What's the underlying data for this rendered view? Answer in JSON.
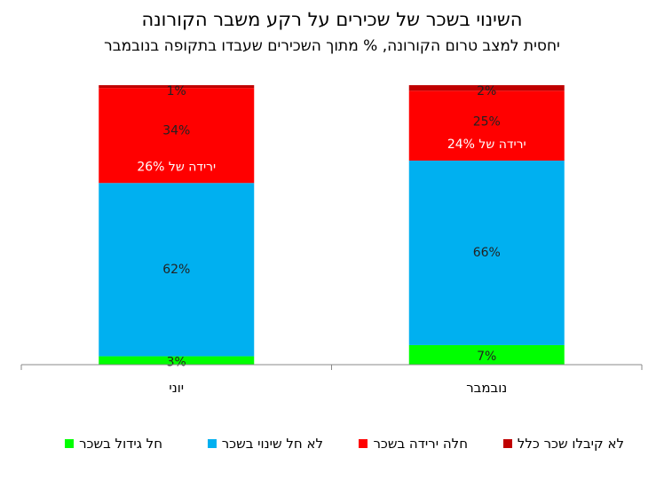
{
  "chart_data": {
    "type": "bar",
    "stacked": true,
    "normalized": true,
    "title": "השינוי בשכר של שכירים על רקע משבר הקורונה",
    "subtitle": "יחסית למצב טרום הקורונה, % מתוך השכירים שעבדו בתקופה בנובמבר",
    "categories": [
      "יוני",
      "נובמבר"
    ],
    "series": [
      {
        "name": "חל גידול בשכר",
        "color": "#00FF00",
        "values": [
          3,
          7
        ],
        "labels": [
          "3%",
          "7%"
        ]
      },
      {
        "name": "לא חל שינוי בשכר",
        "color": "#00B0F0",
        "values": [
          62,
          66
        ],
        "labels": [
          "62%",
          "66%"
        ]
      },
      {
        "name": "חלה ירידה בשכר",
        "color": "#FF0000",
        "values": [
          34,
          25
        ],
        "labels": [
          "34%",
          "25%"
        ]
      },
      {
        "name": "לא קיבלו שכר כלל",
        "color": "#C00000",
        "values": [
          1,
          2
        ],
        "labels": [
          "1%",
          "2%"
        ]
      }
    ],
    "annotations": [
      {
        "category": "יוני",
        "text": "ירידה של 26%"
      },
      {
        "category": "נובמבר",
        "text": "ירידה של 24%"
      }
    ],
    "ylim": [
      0,
      100
    ],
    "grid": false,
    "legend_position": "bottom"
  }
}
